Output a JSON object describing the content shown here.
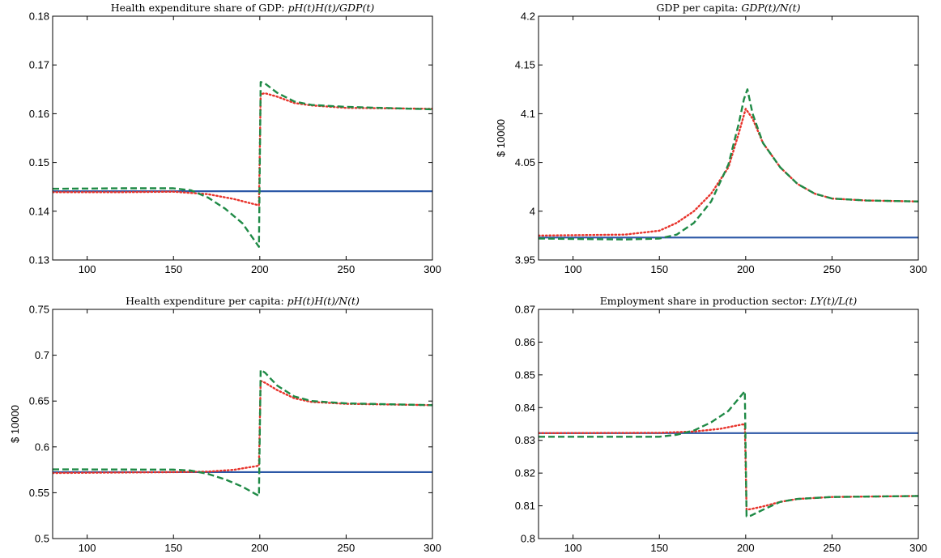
{
  "figure": {
    "series_styles": [
      {
        "color": "#2b57a6",
        "dash": "solid"
      },
      {
        "color": "#e8332b",
        "dash": "dotted"
      },
      {
        "color": "#1f8a46",
        "dash": "dashed"
      }
    ]
  },
  "chart_data": [
    {
      "type": "line",
      "title": "Health expenditure share of GDP: p_H(t)H(t)/GDP(t)",
      "title_parts": {
        "prefix": "Health expenditure share of GDP: ",
        "math": "pH(t)H(t)/GDP(t)"
      },
      "xlabel": "",
      "ylabel": "",
      "xlim": [
        80,
        300
      ],
      "ylim": [
        0.13,
        0.18
      ],
      "xticks": [
        "100",
        "150",
        "200",
        "250",
        "300"
      ],
      "yticks": [
        "0.13",
        "0.14",
        "0.15",
        "0.16",
        "0.17",
        "0.18"
      ],
      "grid": false,
      "series": [
        {
          "x": [
            80,
            300
          ],
          "values": [
            0.1441,
            0.1441
          ]
        },
        {
          "x": [
            80,
            120,
            150,
            170,
            185,
            199.5,
            200.5,
            203,
            210,
            220,
            230,
            250,
            300
          ],
          "values": [
            0.1439,
            0.1439,
            0.144,
            0.1435,
            0.1425,
            0.1412,
            0.164,
            0.1642,
            0.1635,
            0.1622,
            0.1617,
            0.1612,
            0.161
          ]
        },
        {
          "x": [
            80,
            120,
            150,
            160,
            170,
            180,
            190,
            199.5,
            200.5,
            203,
            210,
            220,
            230,
            250,
            300
          ],
          "values": [
            0.1446,
            0.1447,
            0.1447,
            0.1443,
            0.1428,
            0.1405,
            0.1375,
            0.1327,
            0.1665,
            0.1662,
            0.1643,
            0.1625,
            0.1618,
            0.1614,
            0.1609
          ]
        }
      ]
    },
    {
      "type": "line",
      "title": "GDP per capita: GDP(t)/N(t)",
      "title_parts": {
        "prefix": "GDP per capita: ",
        "math": "GDP(t)/N(t)"
      },
      "xlabel": "",
      "ylabel": "$ 10000",
      "xlim": [
        80,
        300
      ],
      "ylim": [
        3.95,
        4.2
      ],
      "xticks": [
        "100",
        "150",
        "200",
        "250",
        "300"
      ],
      "yticks": [
        "3.95",
        "4",
        "4.05",
        "4.1",
        "4.15",
        "4.2"
      ],
      "grid": false,
      "series": [
        {
          "x": [
            80,
            300
          ],
          "values": [
            3.973,
            3.973
          ]
        },
        {
          "x": [
            80,
            130,
            150,
            160,
            170,
            180,
            190,
            196,
            200,
            204,
            210,
            220,
            230,
            240,
            250,
            270,
            300
          ],
          "values": [
            3.975,
            3.976,
            3.98,
            3.988,
            4.0,
            4.018,
            4.045,
            4.08,
            4.105,
            4.095,
            4.07,
            4.045,
            4.028,
            4.018,
            4.013,
            4.011,
            4.01
          ]
        },
        {
          "x": [
            80,
            130,
            150,
            160,
            170,
            180,
            190,
            196,
            199,
            201,
            204,
            210,
            220,
            230,
            240,
            250,
            270,
            300
          ],
          "values": [
            3.972,
            3.971,
            3.972,
            3.976,
            3.988,
            4.01,
            4.048,
            4.09,
            4.115,
            4.125,
            4.1,
            4.07,
            4.045,
            4.028,
            4.018,
            4.013,
            4.011,
            4.01
          ]
        }
      ]
    },
    {
      "type": "line",
      "title": "Health expenditure per capita: p_H(t)H(t)/N(t)",
      "title_parts": {
        "prefix": "Health expenditure per capita: ",
        "math": "pH(t)H(t)/N(t)"
      },
      "xlabel": "",
      "ylabel": "$ 10000",
      "xlim": [
        80,
        300
      ],
      "ylim": [
        0.5,
        0.75
      ],
      "xticks": [
        "100",
        "150",
        "200",
        "250",
        "300"
      ],
      "yticks": [
        "0.5",
        "0.55",
        "0.6",
        "0.65",
        "0.7",
        "0.75"
      ],
      "grid": false,
      "series": [
        {
          "x": [
            80,
            300
          ],
          "values": [
            0.5725,
            0.5725
          ]
        },
        {
          "x": [
            80,
            150,
            170,
            185,
            199.5,
            200.5,
            203,
            210,
            220,
            230,
            250,
            300
          ],
          "values": [
            0.5715,
            0.5725,
            0.573,
            0.575,
            0.5795,
            0.672,
            0.67,
            0.662,
            0.653,
            0.649,
            0.647,
            0.6455
          ]
        },
        {
          "x": [
            80,
            150,
            160,
            170,
            180,
            190,
            199.5,
            200.5,
            203,
            210,
            220,
            230,
            250,
            300
          ],
          "values": [
            0.5755,
            0.5752,
            0.5742,
            0.5705,
            0.5645,
            0.5565,
            0.5465,
            0.684,
            0.681,
            0.667,
            0.655,
            0.65,
            0.6475,
            0.6455
          ]
        }
      ]
    },
    {
      "type": "line",
      "title": "Employment share in production sector: L_Y(t)/L(t)",
      "title_parts": {
        "prefix": "Employment share in production sector: ",
        "math": "LY(t)/L(t)"
      },
      "xlabel": "",
      "ylabel": "",
      "xlim": [
        80,
        300
      ],
      "ylim": [
        0.8,
        0.87
      ],
      "xticks": [
        "100",
        "150",
        "200",
        "250",
        "300"
      ],
      "yticks": [
        "0.8",
        "0.81",
        "0.82",
        "0.83",
        "0.84",
        "0.85",
        "0.86",
        "0.87"
      ],
      "grid": false,
      "series": [
        {
          "x": [
            80,
            300
          ],
          "values": [
            0.8322,
            0.8322
          ]
        },
        {
          "x": [
            80,
            150,
            170,
            185,
            199.5,
            200.5,
            203,
            210,
            220,
            230,
            250,
            300
          ],
          "values": [
            0.8322,
            0.8323,
            0.8327,
            0.8335,
            0.835,
            0.8088,
            0.809,
            0.8098,
            0.8112,
            0.8121,
            0.8127,
            0.813
          ]
        },
        {
          "x": [
            80,
            150,
            160,
            170,
            180,
            190,
            199.5,
            200.5,
            203,
            210,
            220,
            230,
            250,
            300
          ],
          "values": [
            0.8311,
            0.8311,
            0.8317,
            0.833,
            0.8355,
            0.839,
            0.845,
            0.8068,
            0.807,
            0.8088,
            0.8112,
            0.8121,
            0.8127,
            0.813
          ]
        }
      ]
    }
  ]
}
